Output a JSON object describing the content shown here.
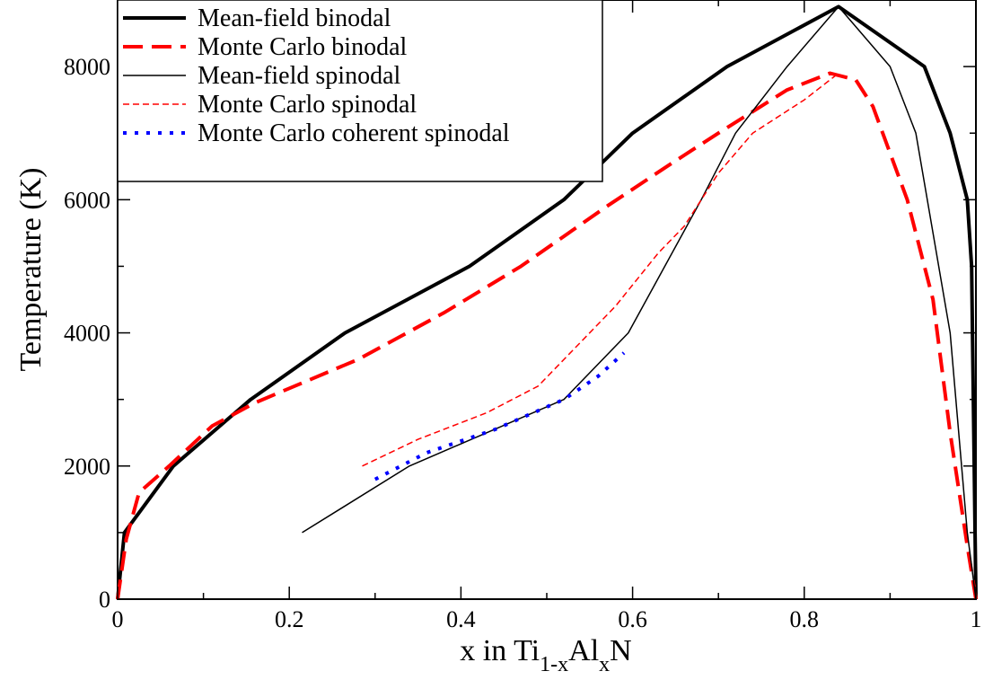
{
  "chart_data": {
    "type": "line",
    "xlabel": {
      "prefix": "x in Ti",
      "sub1": "1-x",
      "mid": "Al",
      "sub2": "x",
      "suffix": "N"
    },
    "ylabel": "Temperature (K)",
    "xlim": [
      0,
      1
    ],
    "ylim": [
      0,
      9000
    ],
    "x_ticks": [
      0,
      0.2,
      0.4,
      0.6,
      0.8,
      1
    ],
    "x_tick_labels": [
      "0",
      "0.2",
      "0.4",
      "0.6",
      "0.8",
      "1"
    ],
    "y_ticks": [
      0,
      2000,
      4000,
      6000,
      8000
    ],
    "y_tick_labels": [
      "0",
      "2000",
      "4000",
      "6000",
      "8000"
    ],
    "grid": false,
    "legend_position": "top-left",
    "series": [
      {
        "name": "Mean-field binodal",
        "color": "#000000",
        "style": "solid-thick",
        "points": [
          [
            0,
            0
          ],
          [
            0.008,
            1000
          ],
          [
            0.065,
            2000
          ],
          [
            0.155,
            3000
          ],
          [
            0.265,
            4000
          ],
          [
            0.41,
            5000
          ],
          [
            0.52,
            6000
          ],
          [
            0.6,
            7000
          ],
          [
            0.71,
            8000
          ],
          [
            0.84,
            8900
          ],
          [
            0.94,
            8000
          ],
          [
            0.97,
            7000
          ],
          [
            0.99,
            6000
          ],
          [
            0.995,
            5000
          ],
          [
            0.998,
            2000
          ],
          [
            1.0,
            0
          ]
        ]
      },
      {
        "name": "Monte Carlo binodal",
        "color": "#ff0000",
        "style": "dashed-thick",
        "points": [
          [
            0,
            0
          ],
          [
            0.01,
            900
          ],
          [
            0.025,
            1600
          ],
          [
            0.06,
            2000
          ],
          [
            0.11,
            2600
          ],
          [
            0.16,
            2950
          ],
          [
            0.28,
            3600
          ],
          [
            0.38,
            4300
          ],
          [
            0.47,
            5000
          ],
          [
            0.57,
            5900
          ],
          [
            0.64,
            6500
          ],
          [
            0.7,
            7000
          ],
          [
            0.78,
            7650
          ],
          [
            0.83,
            7900
          ],
          [
            0.86,
            7800
          ],
          [
            0.88,
            7400
          ],
          [
            0.92,
            6000
          ],
          [
            0.95,
            4500
          ],
          [
            0.97,
            2500
          ],
          [
            0.99,
            800
          ],
          [
            1.0,
            0
          ]
        ]
      },
      {
        "name": "Mean-field spinodal",
        "color": "#000000",
        "style": "solid-thin",
        "points": [
          [
            0.215,
            1000
          ],
          [
            0.34,
            2000
          ],
          [
            0.52,
            3000
          ],
          [
            0.595,
            4000
          ],
          [
            0.68,
            6000
          ],
          [
            0.72,
            7000
          ],
          [
            0.78,
            8000
          ],
          [
            0.84,
            8900
          ],
          [
            0.9,
            8000
          ],
          [
            0.93,
            7000
          ],
          [
            0.97,
            4000
          ],
          [
            0.99,
            1000
          ],
          [
            1.0,
            0
          ]
        ]
      },
      {
        "name": "Monte Carlo spinodal",
        "color": "#ff0000",
        "style": "dashed-thin",
        "points": [
          [
            0.285,
            2000
          ],
          [
            0.35,
            2400
          ],
          [
            0.43,
            2800
          ],
          [
            0.49,
            3200
          ],
          [
            0.58,
            4400
          ],
          [
            0.63,
            5200
          ],
          [
            0.66,
            5600
          ],
          [
            0.7,
            6400
          ],
          [
            0.74,
            7000
          ],
          [
            0.8,
            7500
          ],
          [
            0.84,
            7900
          ]
        ]
      },
      {
        "name": "Monte Carlo coherent spinodal",
        "color": "#0000ff",
        "style": "dotted",
        "points": [
          [
            0.3,
            1800
          ],
          [
            0.36,
            2200
          ],
          [
            0.44,
            2550
          ],
          [
            0.52,
            3000
          ],
          [
            0.56,
            3350
          ],
          [
            0.59,
            3700
          ]
        ]
      }
    ]
  }
}
